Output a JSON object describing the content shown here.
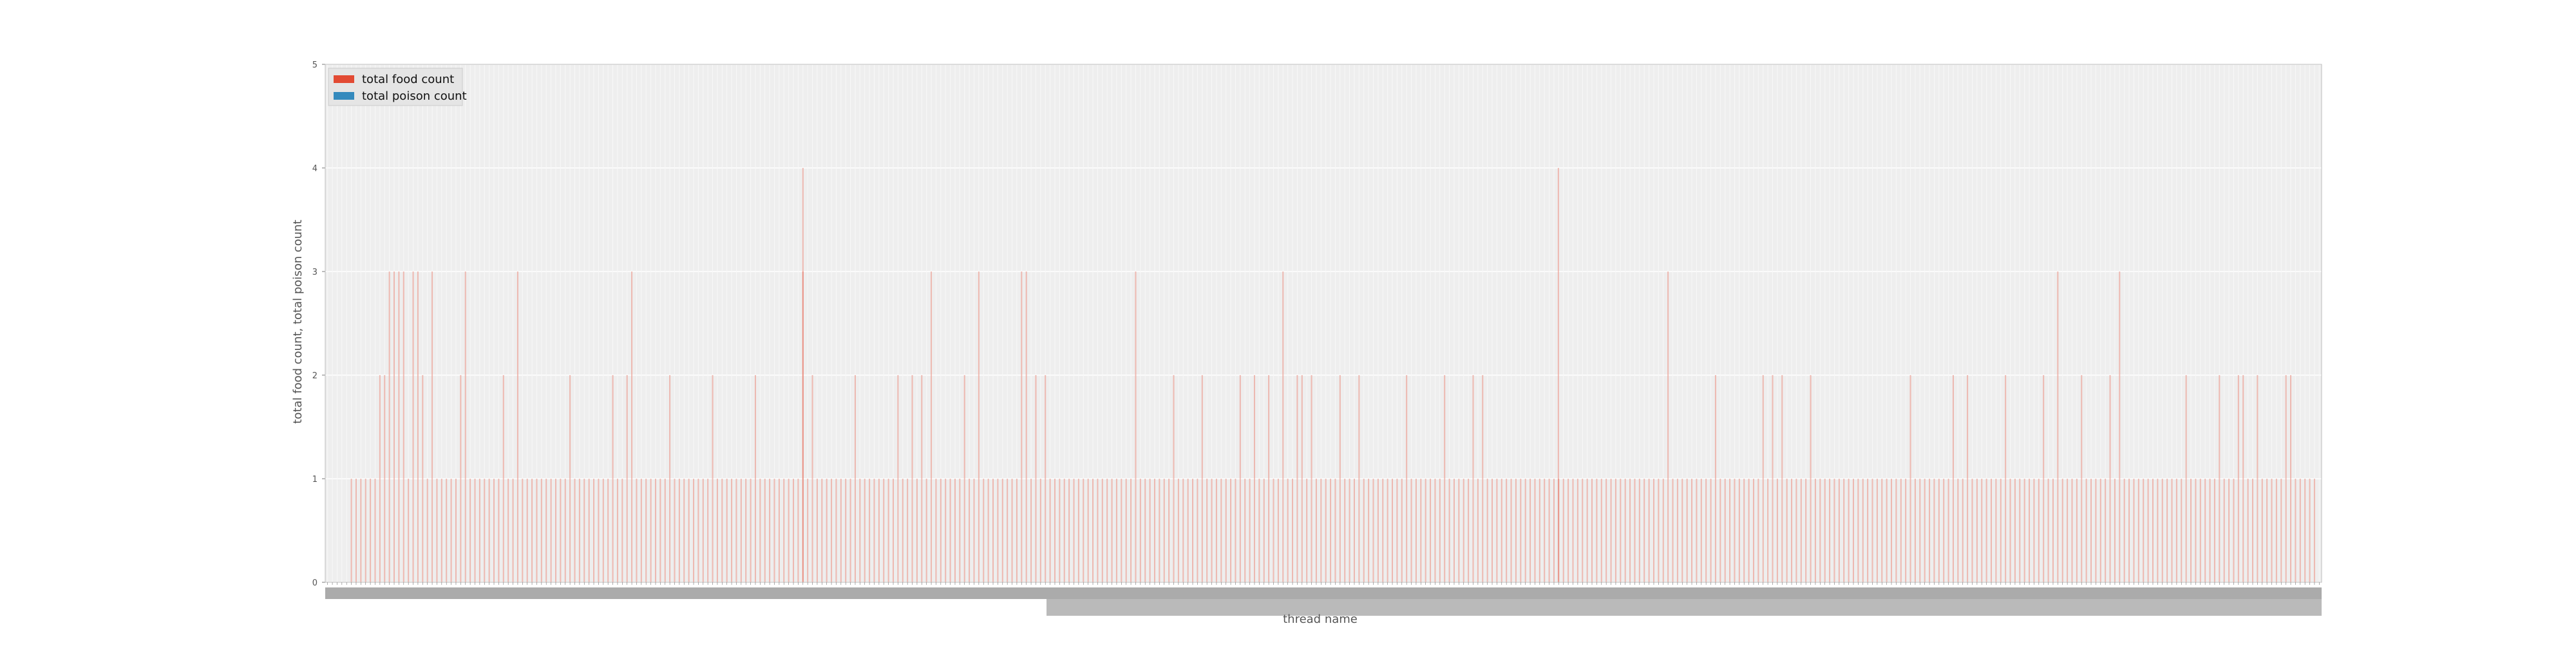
{
  "chart_data": {
    "type": "bar",
    "title": "",
    "xlabel": "thread name",
    "ylabel": "total food count, total poison count",
    "ylim": [
      0,
      5
    ],
    "yticks": [
      0,
      1,
      2,
      3,
      4,
      5
    ],
    "grid": true,
    "legend_position": "top-left",
    "category_count": 420,
    "x_tick_labels_legible": false,
    "series": [
      {
        "name": "total food count",
        "color": "#e24a33",
        "values": [
          0,
          0,
          0,
          0,
          0,
          1,
          1,
          1,
          1,
          1,
          1,
          2,
          2,
          3,
          3,
          3,
          3,
          1,
          3,
          3,
          2,
          1,
          3,
          1,
          1,
          1,
          1,
          1,
          2,
          3,
          1,
          1,
          1,
          1,
          1,
          1,
          1,
          2,
          1,
          1,
          3,
          1,
          1,
          1,
          1,
          1,
          1,
          1,
          1,
          1,
          1,
          2,
          1,
          1,
          1,
          1,
          1,
          1,
          1,
          1,
          2,
          1,
          1,
          2,
          3,
          1,
          1,
          1,
          1,
          1,
          1,
          1,
          2,
          1,
          1,
          1,
          1,
          1,
          1,
          1,
          1,
          2,
          1,
          1,
          1,
          1,
          1,
          1,
          1,
          1,
          2,
          1,
          1,
          1,
          1,
          1,
          1,
          1,
          1,
          1,
          3,
          1,
          2,
          1,
          1,
          1,
          1,
          1,
          1,
          1,
          1,
          2,
          1,
          1,
          1,
          1,
          1,
          1,
          1,
          1,
          2,
          1,
          1,
          2,
          1,
          2,
          1,
          3,
          1,
          1,
          1,
          1,
          1,
          1,
          2,
          1,
          1,
          3,
          1,
          1,
          1,
          1,
          1,
          1,
          1,
          1,
          3,
          3,
          1,
          2,
          1,
          2,
          1,
          1,
          1,
          1,
          1,
          1,
          1,
          1,
          1,
          1,
          1,
          1,
          1,
          1,
          1,
          1,
          1,
          1,
          3,
          1,
          1,
          1,
          1,
          1,
          1,
          1,
          2,
          1,
          1,
          1,
          1,
          1,
          2,
          1,
          1,
          1,
          1,
          1,
          1,
          1,
          2,
          1,
          1,
          2,
          1,
          1,
          2,
          1,
          1,
          3,
          1,
          1,
          2,
          2,
          1,
          2,
          1,
          1,
          1,
          1,
          1,
          2,
          1,
          1,
          1,
          2,
          1,
          1,
          1,
          1,
          1,
          1,
          1,
          1,
          1,
          2,
          1,
          1,
          1,
          1,
          1,
          1,
          1,
          2,
          1,
          1,
          1,
          1,
          1,
          2,
          1,
          2,
          1,
          1,
          1,
          1,
          1,
          1,
          1,
          1,
          1,
          1,
          1,
          1,
          1,
          1,
          1,
          1,
          1,
          1,
          1,
          1,
          1,
          1,
          1,
          1,
          1,
          1,
          1,
          1,
          1,
          1,
          1,
          1,
          1,
          1,
          1,
          1,
          1,
          1,
          3,
          1,
          1,
          1,
          1,
          1,
          1,
          1,
          1,
          1,
          2,
          1,
          1,
          1,
          1,
          1,
          1,
          1,
          1,
          1,
          2,
          1,
          2,
          1,
          2,
          1,
          1,
          1,
          1,
          1,
          2,
          1,
          1,
          1,
          1,
          1,
          1,
          1,
          1,
          1,
          1,
          1,
          1,
          1,
          1,
          1,
          1,
          1,
          1,
          1,
          1,
          2,
          1,
          1,
          1,
          1,
          1,
          1,
          1,
          1,
          2,
          1,
          1,
          2,
          1,
          1,
          1,
          1,
          1,
          1,
          1,
          2,
          1,
          1,
          1,
          1,
          1,
          1,
          1,
          2,
          1,
          1,
          3,
          1,
          1,
          1,
          1,
          2,
          1,
          1,
          1,
          1,
          1,
          2,
          1,
          3,
          1,
          1,
          1,
          1,
          1,
          1,
          1,
          1,
          1,
          1,
          1,
          1,
          1,
          2,
          1,
          1,
          1,
          1,
          1,
          1,
          2,
          1,
          1,
          1,
          2,
          2,
          1,
          1,
          2,
          1,
          1,
          1,
          1,
          1,
          2,
          2,
          1,
          1,
          1,
          1,
          1
        ]
      },
      {
        "name": "total poison count",
        "color": "#348abd",
        "values": []
      }
    ],
    "extra_values_from_food_series": [
      4,
      4
    ]
  }
}
